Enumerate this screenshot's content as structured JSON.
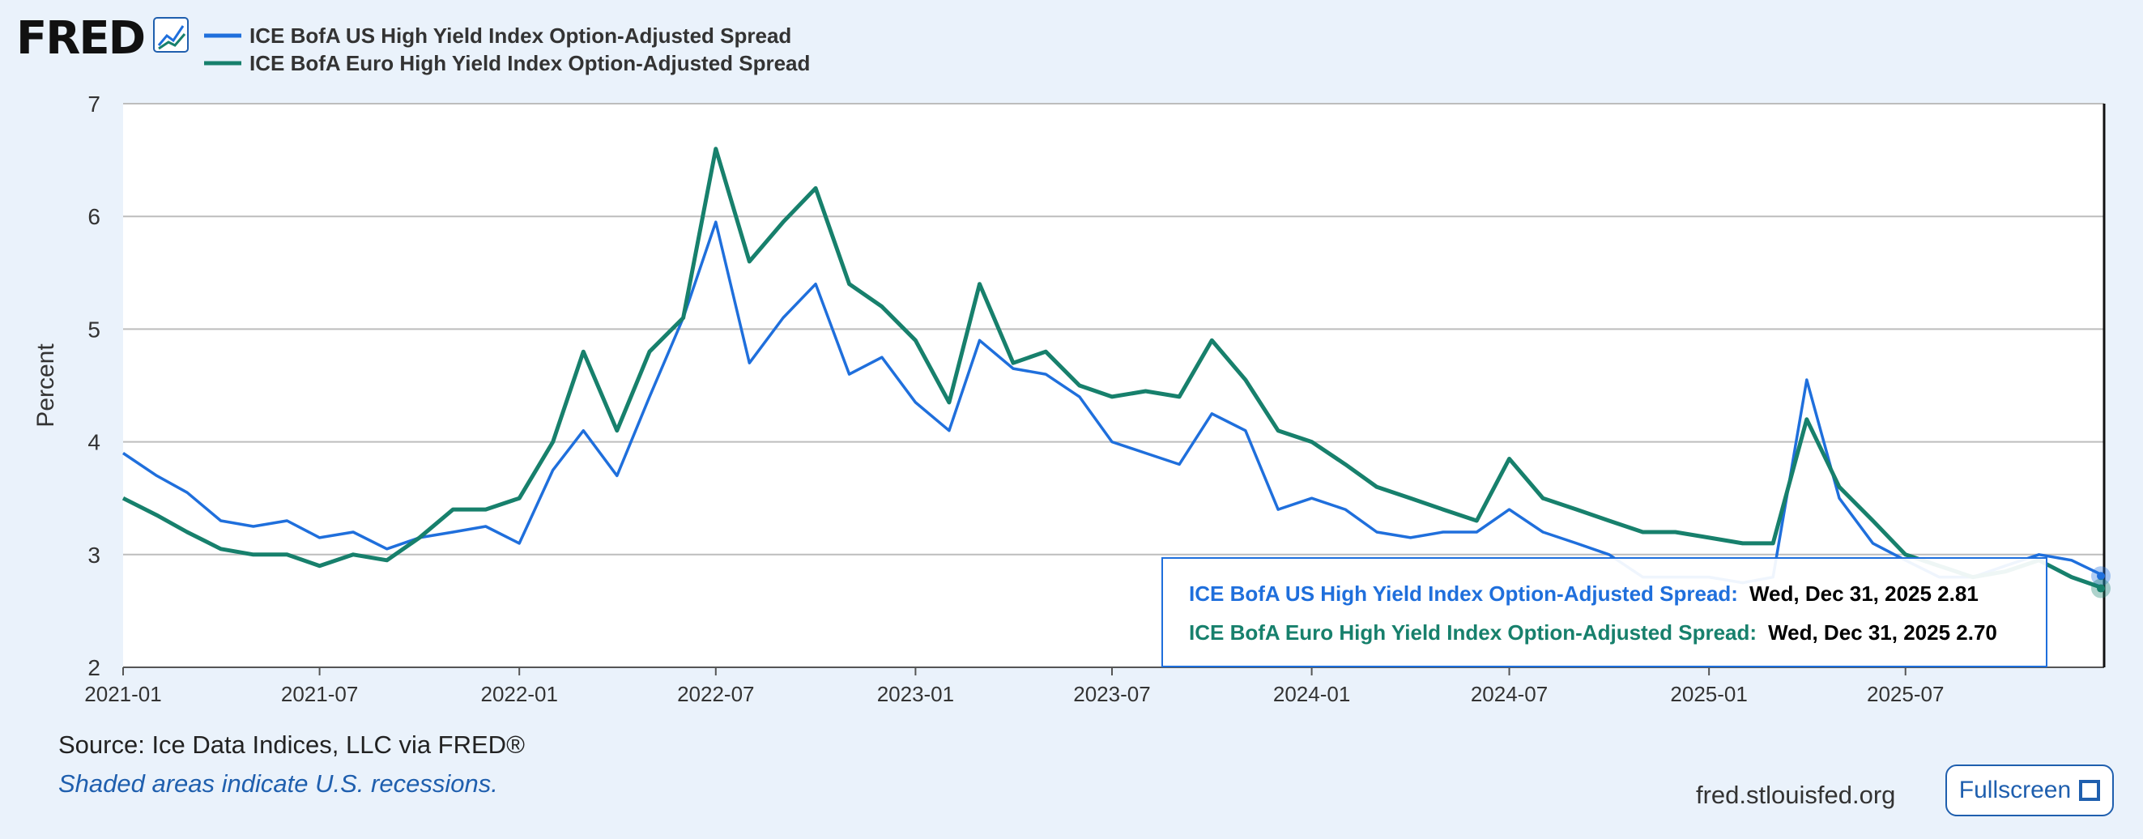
{
  "brand": {
    "logo_text": "FRED"
  },
  "legend": [
    {
      "label": "ICE BofA US High Yield Index Option-Adjusted Spread",
      "color": "#1f6fdc"
    },
    {
      "label": "ICE BofA Euro High Yield Index Option-Adjusted Spread",
      "color": "#17806c"
    }
  ],
  "chart_data": {
    "type": "line",
    "title": "",
    "xlabel": "",
    "ylabel": "Percent",
    "ylim": [
      2,
      7
    ],
    "yticks": [
      "2",
      "3",
      "4",
      "5",
      "6",
      "7"
    ],
    "xticks": [
      "2021-01",
      "2021-07",
      "2022-01",
      "2022-07",
      "2023-01",
      "2023-07",
      "2024-01",
      "2024-07",
      "2025-01",
      "2025-07"
    ],
    "xrange": [
      "2021-01-01",
      "2025-12-31"
    ],
    "grid": true,
    "legend_position": "top-left",
    "x": [
      "2021-01-01",
      "2021-02-01",
      "2021-03-01",
      "2021-04-01",
      "2021-05-01",
      "2021-06-01",
      "2021-07-01",
      "2021-08-01",
      "2021-09-01",
      "2021-10-01",
      "2021-11-01",
      "2021-12-01",
      "2022-01-01",
      "2022-02-01",
      "2022-03-01",
      "2022-04-01",
      "2022-05-01",
      "2022-06-01",
      "2022-07-01",
      "2022-08-01",
      "2022-09-01",
      "2022-10-01",
      "2022-11-01",
      "2022-12-01",
      "2023-01-01",
      "2023-02-01",
      "2023-03-01",
      "2023-04-01",
      "2023-05-01",
      "2023-06-01",
      "2023-07-01",
      "2023-08-01",
      "2023-09-01",
      "2023-10-01",
      "2023-11-01",
      "2023-12-01",
      "2024-01-01",
      "2024-02-01",
      "2024-03-01",
      "2024-04-01",
      "2024-05-01",
      "2024-06-01",
      "2024-07-01",
      "2024-08-01",
      "2024-09-01",
      "2024-10-01",
      "2024-11-01",
      "2024-12-01",
      "2025-01-01",
      "2025-02-01",
      "2025-03-01",
      "2025-04-01",
      "2025-05-01",
      "2025-06-01",
      "2025-07-01",
      "2025-08-01",
      "2025-09-01",
      "2025-10-01",
      "2025-11-01",
      "2025-12-01",
      "2025-12-31"
    ],
    "series": [
      {
        "name": "ICE BofA US High Yield Index Option-Adjusted Spread",
        "color": "#1f6fdc",
        "values": [
          3.9,
          3.7,
          3.55,
          3.3,
          3.25,
          3.3,
          3.15,
          3.2,
          3.05,
          3.15,
          3.2,
          3.25,
          3.1,
          3.75,
          4.1,
          3.7,
          4.4,
          5.1,
          5.95,
          4.7,
          5.1,
          5.4,
          4.6,
          4.75,
          4.35,
          4.1,
          4.9,
          4.65,
          4.6,
          4.4,
          4.0,
          3.9,
          3.8,
          4.25,
          4.1,
          3.4,
          3.5,
          3.4,
          3.2,
          3.15,
          3.2,
          3.2,
          3.4,
          3.2,
          3.1,
          3.0,
          2.8,
          2.8,
          2.8,
          2.75,
          2.8,
          4.55,
          3.5,
          3.1,
          2.95,
          2.8,
          2.8,
          2.9,
          3.0,
          2.95,
          2.81
        ]
      },
      {
        "name": "ICE BofA Euro High Yield Index Option-Adjusted Spread",
        "color": "#17806c",
        "values": [
          3.5,
          3.35,
          3.2,
          3.05,
          3.0,
          3.0,
          2.9,
          3.0,
          2.95,
          3.15,
          3.4,
          3.4,
          3.5,
          4.0,
          4.8,
          4.1,
          4.8,
          5.1,
          6.6,
          5.6,
          5.95,
          6.25,
          5.4,
          5.2,
          4.9,
          4.35,
          5.4,
          4.7,
          4.8,
          4.5,
          4.4,
          4.45,
          4.4,
          4.9,
          4.55,
          4.1,
          4.0,
          3.8,
          3.6,
          3.5,
          3.4,
          3.3,
          3.85,
          3.5,
          3.4,
          3.3,
          3.2,
          3.2,
          3.15,
          3.1,
          3.1,
          4.2,
          3.6,
          3.3,
          3.0,
          2.9,
          2.8,
          2.85,
          2.95,
          2.8,
          2.7
        ]
      }
    ]
  },
  "tooltip": {
    "rows": [
      {
        "name": "ICE BofA US High Yield Index Option-Adjusted Spread:",
        "value": "Wed, Dec 31, 2025 2.81",
        "color": "#1f6fdc"
      },
      {
        "name": "ICE BofA Euro High Yield Index Option-Adjusted Spread:",
        "value": "Wed, Dec 31, 2025 2.70",
        "color": "#17806c"
      }
    ]
  },
  "footer": {
    "source": "Source: Ice Data Indices, LLC via FRED®",
    "note": "Shaded areas indicate U.S. recessions.",
    "site": "fred.stlouisfed.org",
    "fullscreen_label": "Fullscreen"
  }
}
